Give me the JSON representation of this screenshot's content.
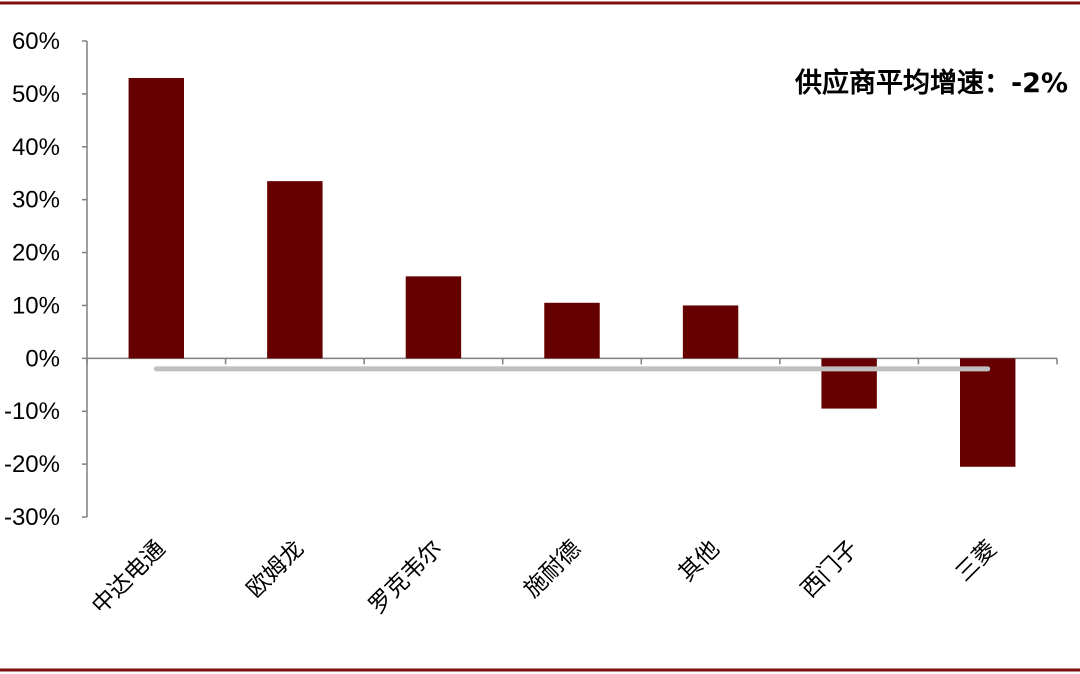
{
  "chart_data": {
    "type": "bar",
    "categories": [
      "中达电通",
      "欧姆龙",
      "罗克韦尔",
      "施耐德",
      "其他",
      "西门子",
      "三菱"
    ],
    "values": [
      53,
      33.5,
      15.5,
      10.5,
      10,
      -9.5,
      -20.5
    ],
    "ylim": [
      -30,
      60
    ],
    "yticks": [
      60,
      50,
      40,
      30,
      20,
      10,
      0,
      -10,
      -20,
      -30
    ],
    "ytick_suffix": "%",
    "average": -2,
    "annotation": "供应商平均增速：-2%",
    "grid": false,
    "title": "",
    "xlabel": "",
    "ylabel": ""
  },
  "colors": {
    "bar": "#660000",
    "average_line": "#bfbfbf",
    "frame": "#7f1010",
    "axis": "#7f7f7f"
  }
}
